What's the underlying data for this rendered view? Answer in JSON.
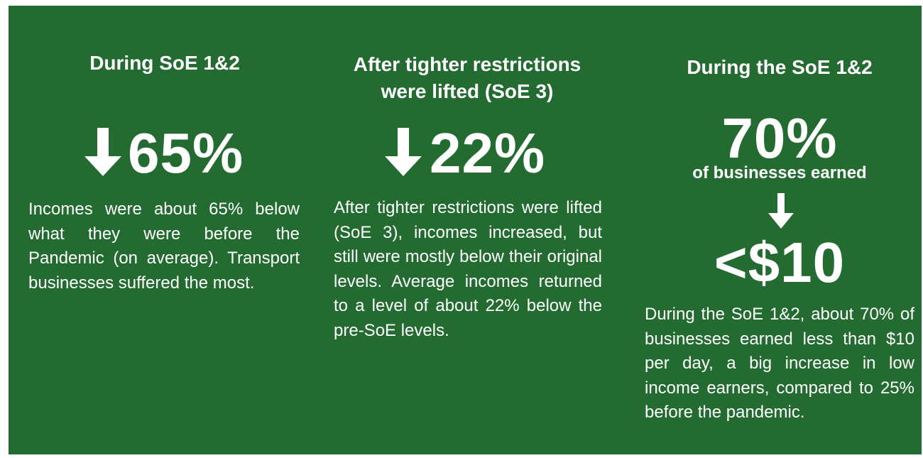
{
  "columns": [
    {
      "heading": "During SoE 1&2",
      "stat": "65%",
      "body": "Incomes were about 65% below what they were before the Pandemic (on average). Transport businesses suffered the most."
    },
    {
      "heading": "After tighter restrictions were lifted (SoE 3)",
      "stat": "22%",
      "body": "After tighter restrictions were lifted (SoE 3), incomes increased, but still were mostly below their original levels. Average incomes returned to a level of about 22% below the pre-SoE levels."
    },
    {
      "heading": "During the SoE 1&2",
      "stat": "70%",
      "stat_caption": "of businesses earned",
      "stat2": "<$10",
      "body": "During the SoE 1&2, about 70% of businesses earned less than $10 per day, a big increase in low income earners, compared to 25% before the pandemic."
    }
  ]
}
